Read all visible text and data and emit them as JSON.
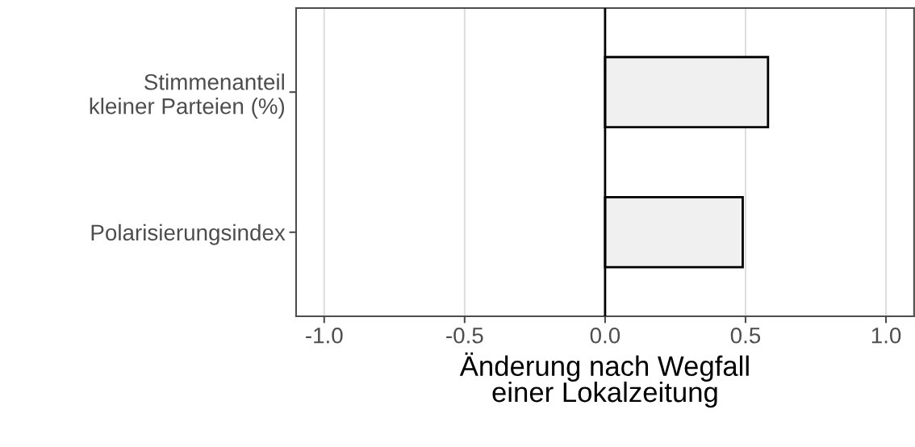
{
  "chart_data": {
    "type": "bar",
    "orientation": "horizontal",
    "categories": [
      "Stimmenanteil\nkleiner Parteien (%)",
      "Polarisierungsindex"
    ],
    "values": [
      0.58,
      0.49
    ],
    "color": "#f0f0f0",
    "xlim": [
      -1.1,
      1.1
    ],
    "xticks": [
      {
        "value": -1.0,
        "label": "-1.0"
      },
      {
        "value": -0.5,
        "label": "-0.5"
      },
      {
        "value": 0.0,
        "label": "0.0"
      },
      {
        "value": 0.5,
        "label": "0.5"
      },
      {
        "value": 1.0,
        "label": "1.0"
      }
    ],
    "xlabel": "Änderung nach Wegfall\neiner Lokalzeitung",
    "grid": "x",
    "ref_lines": [
      {
        "axis": "x",
        "value": 0,
        "color": "#000000"
      }
    ]
  }
}
